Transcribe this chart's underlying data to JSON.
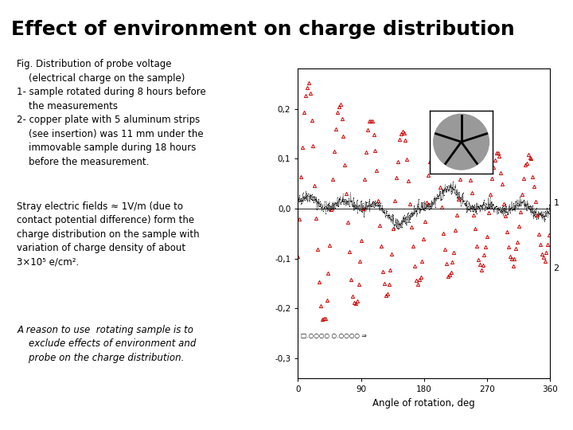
{
  "title": "Effect of environment on charge distribution",
  "title_fontsize": 18,
  "title_color": "#000000",
  "bg_color": "#ffffff",
  "green_line_color": "#00cc00",
  "text1": "Fig. Distribution of probe voltage\n    (electrical charge on the sample)\n1- sample rotated during 8 hours before\n    the measurements\n2- copper plate with 5 aluminum strips\n    (see insertion) was 11 mm under the\n    immovable sample during 18 hours\n    before the measurement.",
  "text2": "Stray electric fields ≈ 1V/m (due to\ncontact potential difference) form the\ncharge distribution on the sample with\nvariation of charge density of about\n3×10⁵ e/cm².",
  "text3": "A reason to use  rotating sample is to\n    exclude effects of environment and\n    probe on the charge distribution.",
  "plot_xlabel": "Angle of rotation, deg",
  "plot_xlim": [
    0,
    360
  ],
  "plot_ylim": [
    -0.34,
    0.28
  ],
  "plot_yticks": [
    -0.3,
    -0.2,
    -0.1,
    0.0,
    0.1,
    0.2
  ],
  "plot_xticks": [
    0,
    90,
    180,
    270,
    360
  ],
  "series1_color": "#000000",
  "series2_color": "#cc0000",
  "label1": "1",
  "label2": "2",
  "text_fontsize": 8.5,
  "italic_fontsize": 8.5
}
